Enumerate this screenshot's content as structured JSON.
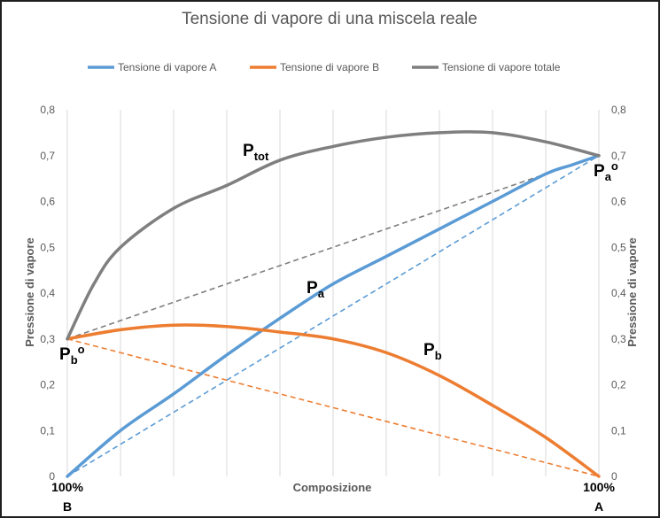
{
  "chart_data": {
    "type": "line",
    "title": "Tensione di vapore di una miscela reale",
    "xlabel": "Composizione",
    "ylabel_left": "Pressione di vapore",
    "ylabel_right": "Pressione di vapore",
    "ylim": [
      0,
      0.8
    ],
    "yticks": [
      "0",
      "0,1",
      "0,2",
      "0,3",
      "0,4",
      "0,5",
      "0,6",
      "0,7",
      "0,8"
    ],
    "xlim": [
      0,
      1
    ],
    "grid": "vertical",
    "legend_position": "top",
    "x_end_labels": {
      "left_pct": "100%",
      "left_letter": "B",
      "right_pct": "100%",
      "right_letter": "A"
    },
    "series": [
      {
        "name": "Tensione di vapore A",
        "color": "#5b9bd5",
        "x": [
          0,
          0.1,
          0.2,
          0.3,
          0.4,
          0.5,
          0.6,
          0.7,
          0.8,
          0.9,
          0.95,
          1
        ],
        "values": [
          0,
          0.1,
          0.18,
          0.265,
          0.345,
          0.42,
          0.48,
          0.54,
          0.6,
          0.66,
          0.68,
          0.7
        ]
      },
      {
        "name": "Tensione di vapore B",
        "color": "#ed7d31",
        "x": [
          0,
          0.1,
          0.2,
          0.3,
          0.4,
          0.5,
          0.6,
          0.7,
          0.8,
          0.9,
          1
        ],
        "values": [
          0.3,
          0.32,
          0.33,
          0.327,
          0.315,
          0.3,
          0.27,
          0.22,
          0.155,
          0.085,
          0
        ]
      },
      {
        "name": "Tensione di vapore totale",
        "color": "#7f7f7f",
        "x": [
          0,
          0.05,
          0.1,
          0.2,
          0.3,
          0.4,
          0.5,
          0.6,
          0.7,
          0.8,
          0.9,
          1
        ],
        "values": [
          0.3,
          0.42,
          0.5,
          0.585,
          0.635,
          0.69,
          0.72,
          0.74,
          0.75,
          0.75,
          0.73,
          0.7
        ]
      }
    ],
    "ideal_lines": [
      {
        "color": "#5b9bd5",
        "x": [
          0,
          1
        ],
        "values": [
          0,
          0.7
        ]
      },
      {
        "color": "#ed7d31",
        "x": [
          0,
          1
        ],
        "values": [
          0.3,
          0
        ]
      },
      {
        "color": "#7f7f7f",
        "x": [
          0,
          1
        ],
        "values": [
          0.3,
          0.7
        ]
      }
    ],
    "annotations": [
      {
        "main": "P",
        "sub": "tot",
        "sup": "",
        "x": 0.33,
        "y": 0.7
      },
      {
        "main": "P",
        "sub": "a",
        "sup": "",
        "x": 0.45,
        "y": 0.4
      },
      {
        "main": "P",
        "sub": "b",
        "sup": "",
        "x": 0.67,
        "y": 0.265
      },
      {
        "main": "P",
        "sub": "a",
        "sup": "o",
        "x": 0.99,
        "y": 0.655
      },
      {
        "main": "P",
        "sub": "b",
        "sup": "o",
        "x": -0.015,
        "y": 0.255
      }
    ]
  }
}
